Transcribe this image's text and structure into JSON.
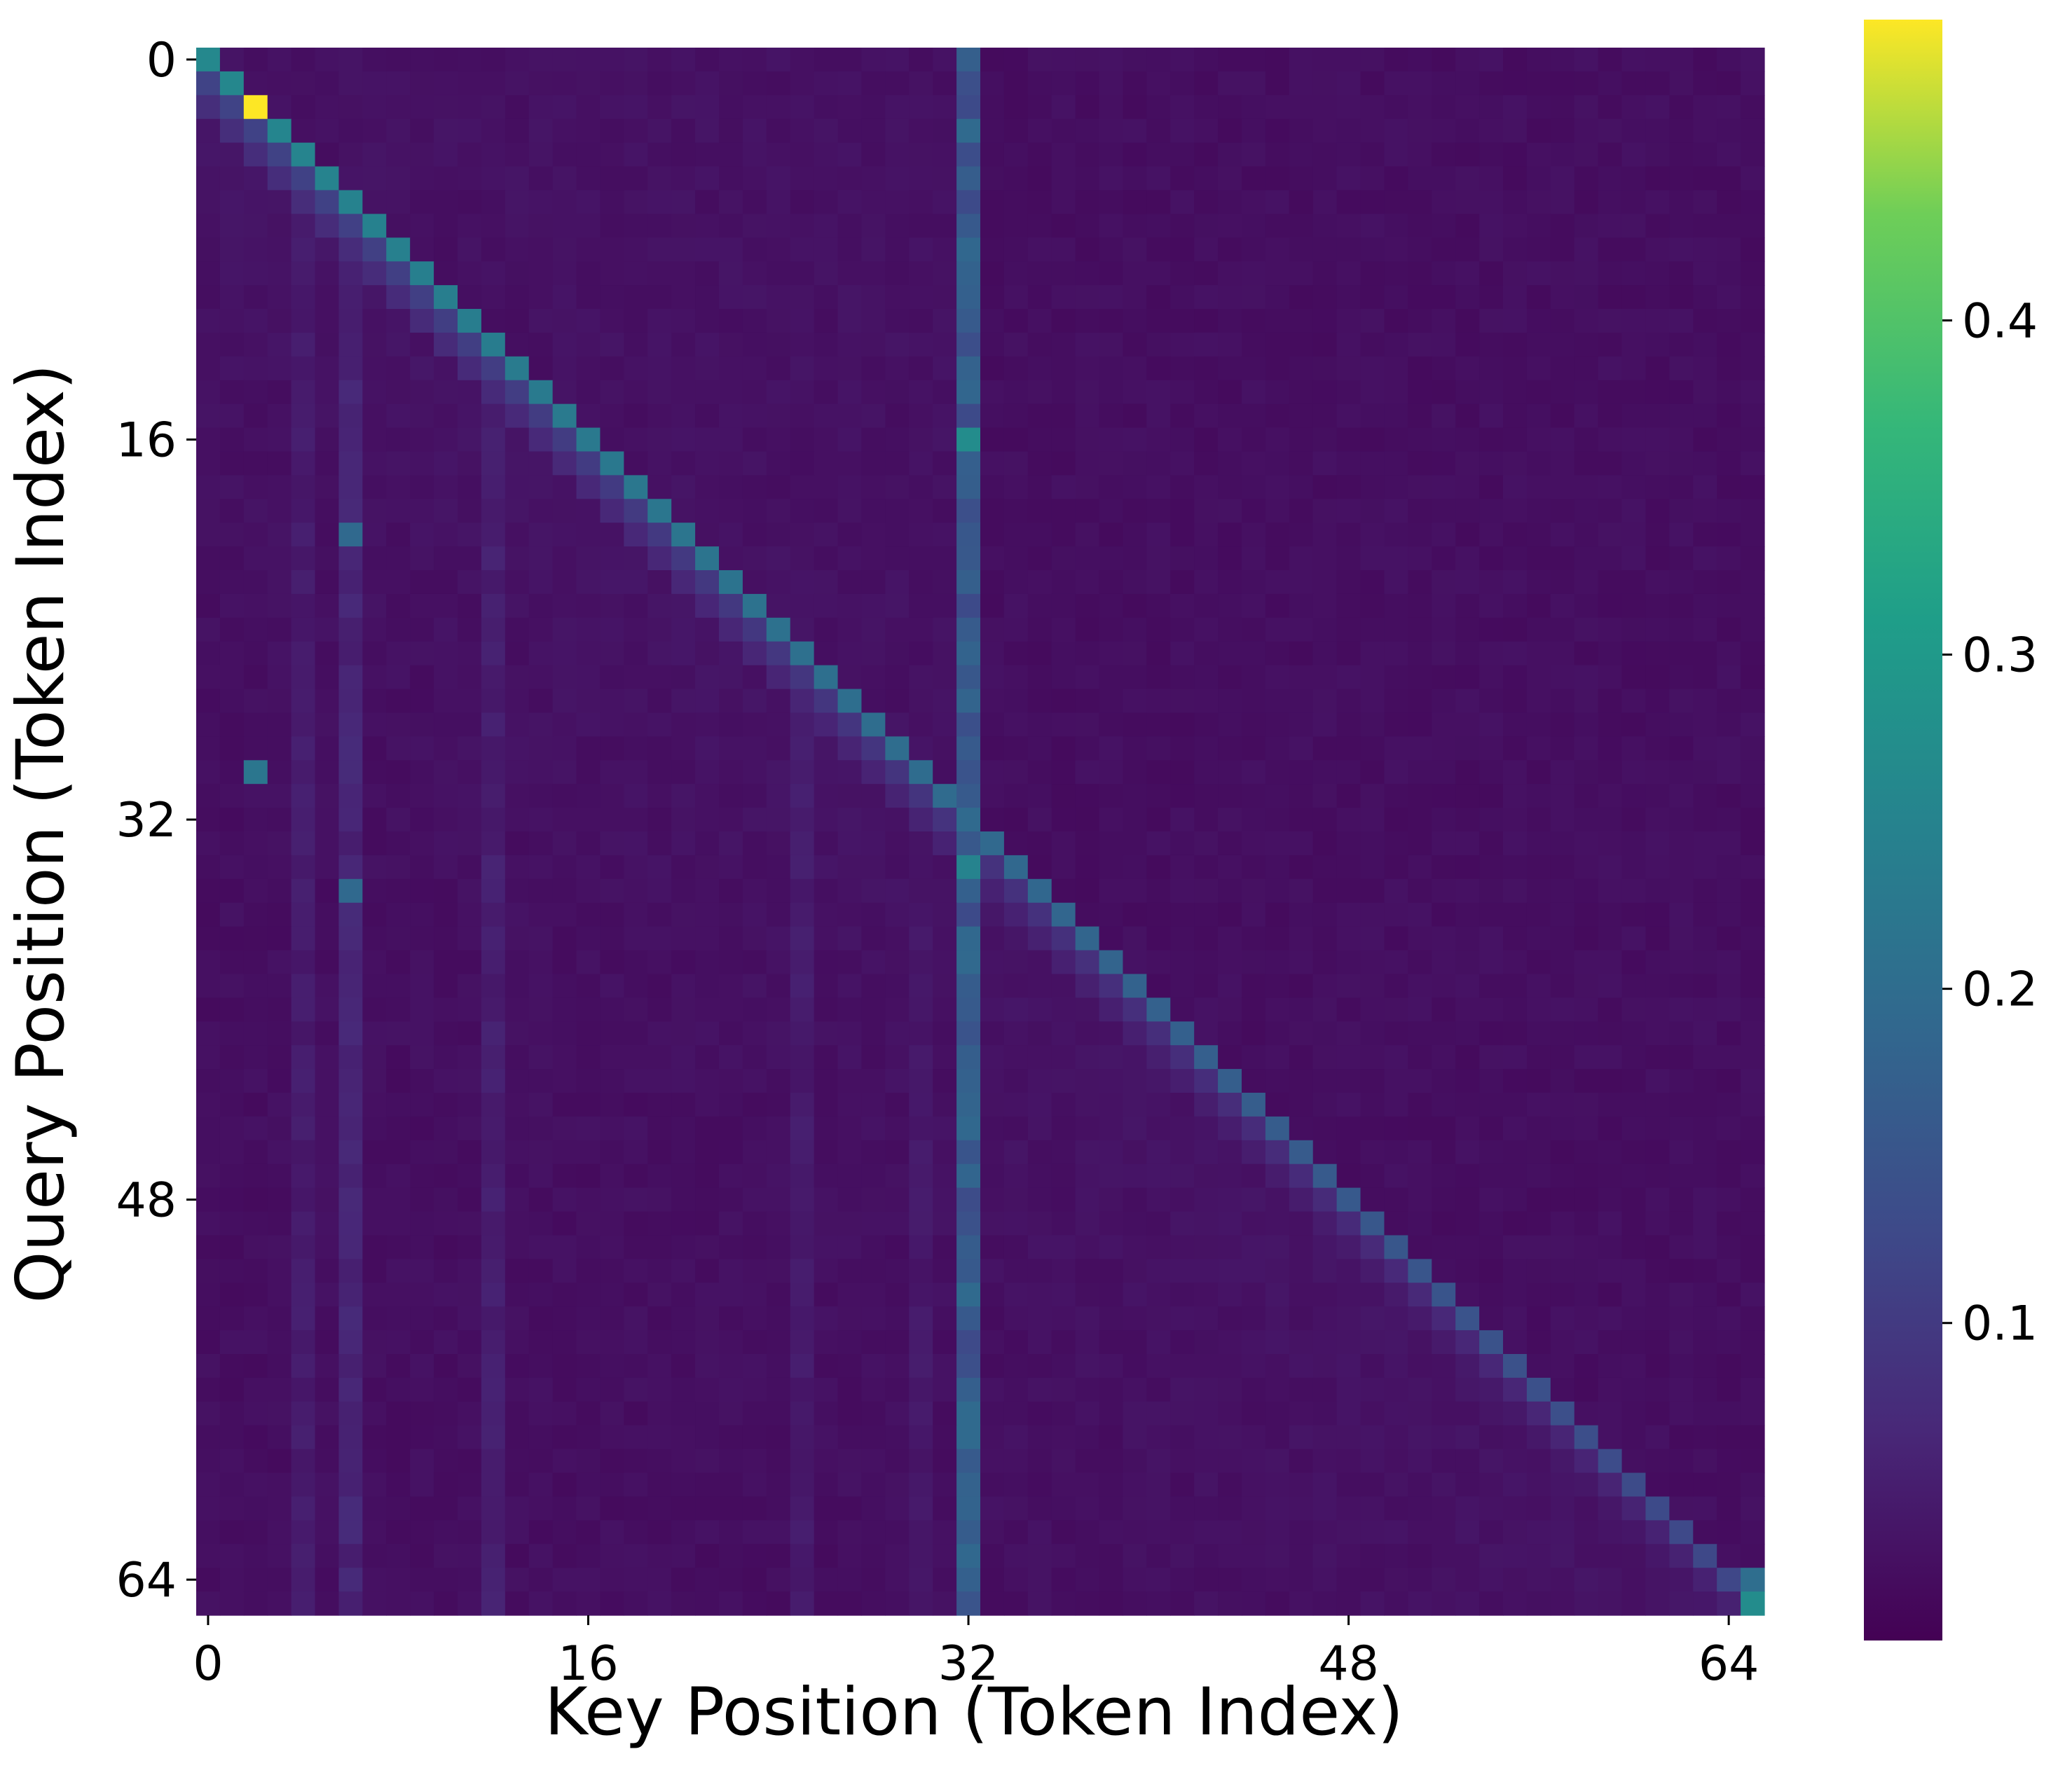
{
  "chart_data": {
    "type": "heatmap",
    "title": "",
    "xlabel": "Key Position (Token Index)",
    "ylabel": "Query Position (Token Index)",
    "x_ticks": [
      0,
      16,
      32,
      48,
      64
    ],
    "y_ticks": [
      0,
      16,
      32,
      48,
      64
    ],
    "grid_size": 66,
    "colormap": "viridis",
    "colorbar": {
      "vmin": 0.005,
      "vmax": 0.49,
      "ticks": [
        0.1,
        0.2,
        0.3,
        0.4
      ],
      "tick_labels": [
        "0.1",
        "0.2",
        "0.3",
        "0.4"
      ]
    },
    "features": {
      "background": 0.02,
      "diagonal": {
        "value_start": 0.26,
        "value_end": 0.12,
        "near_end_value": 0.28
      },
      "strong_cells": [
        {
          "row": 2,
          "col": 2,
          "value": 0.49
        },
        {
          "row": 0,
          "col": 0,
          "value": 0.26
        },
        {
          "row": 16,
          "col": 32,
          "value": 0.27
        },
        {
          "row": 34,
          "col": 32,
          "value": 0.25
        },
        {
          "row": 30,
          "col": 2,
          "value": 0.22
        },
        {
          "row": 20,
          "col": 6,
          "value": 0.19
        },
        {
          "row": 35,
          "col": 6,
          "value": 0.19
        },
        {
          "row": 65,
          "col": 65,
          "value": 0.27
        },
        {
          "row": 64,
          "col": 65,
          "value": 0.2
        }
      ],
      "column_stripes": [
        {
          "col": 32,
          "value": 0.16
        },
        {
          "col": 6,
          "value": 0.06
        },
        {
          "col": 12,
          "value": 0.05
        },
        {
          "col": 4,
          "value": 0.045
        },
        {
          "col": 25,
          "value": 0.045
        },
        {
          "col": 30,
          "value": 0.04
        }
      ]
    }
  }
}
